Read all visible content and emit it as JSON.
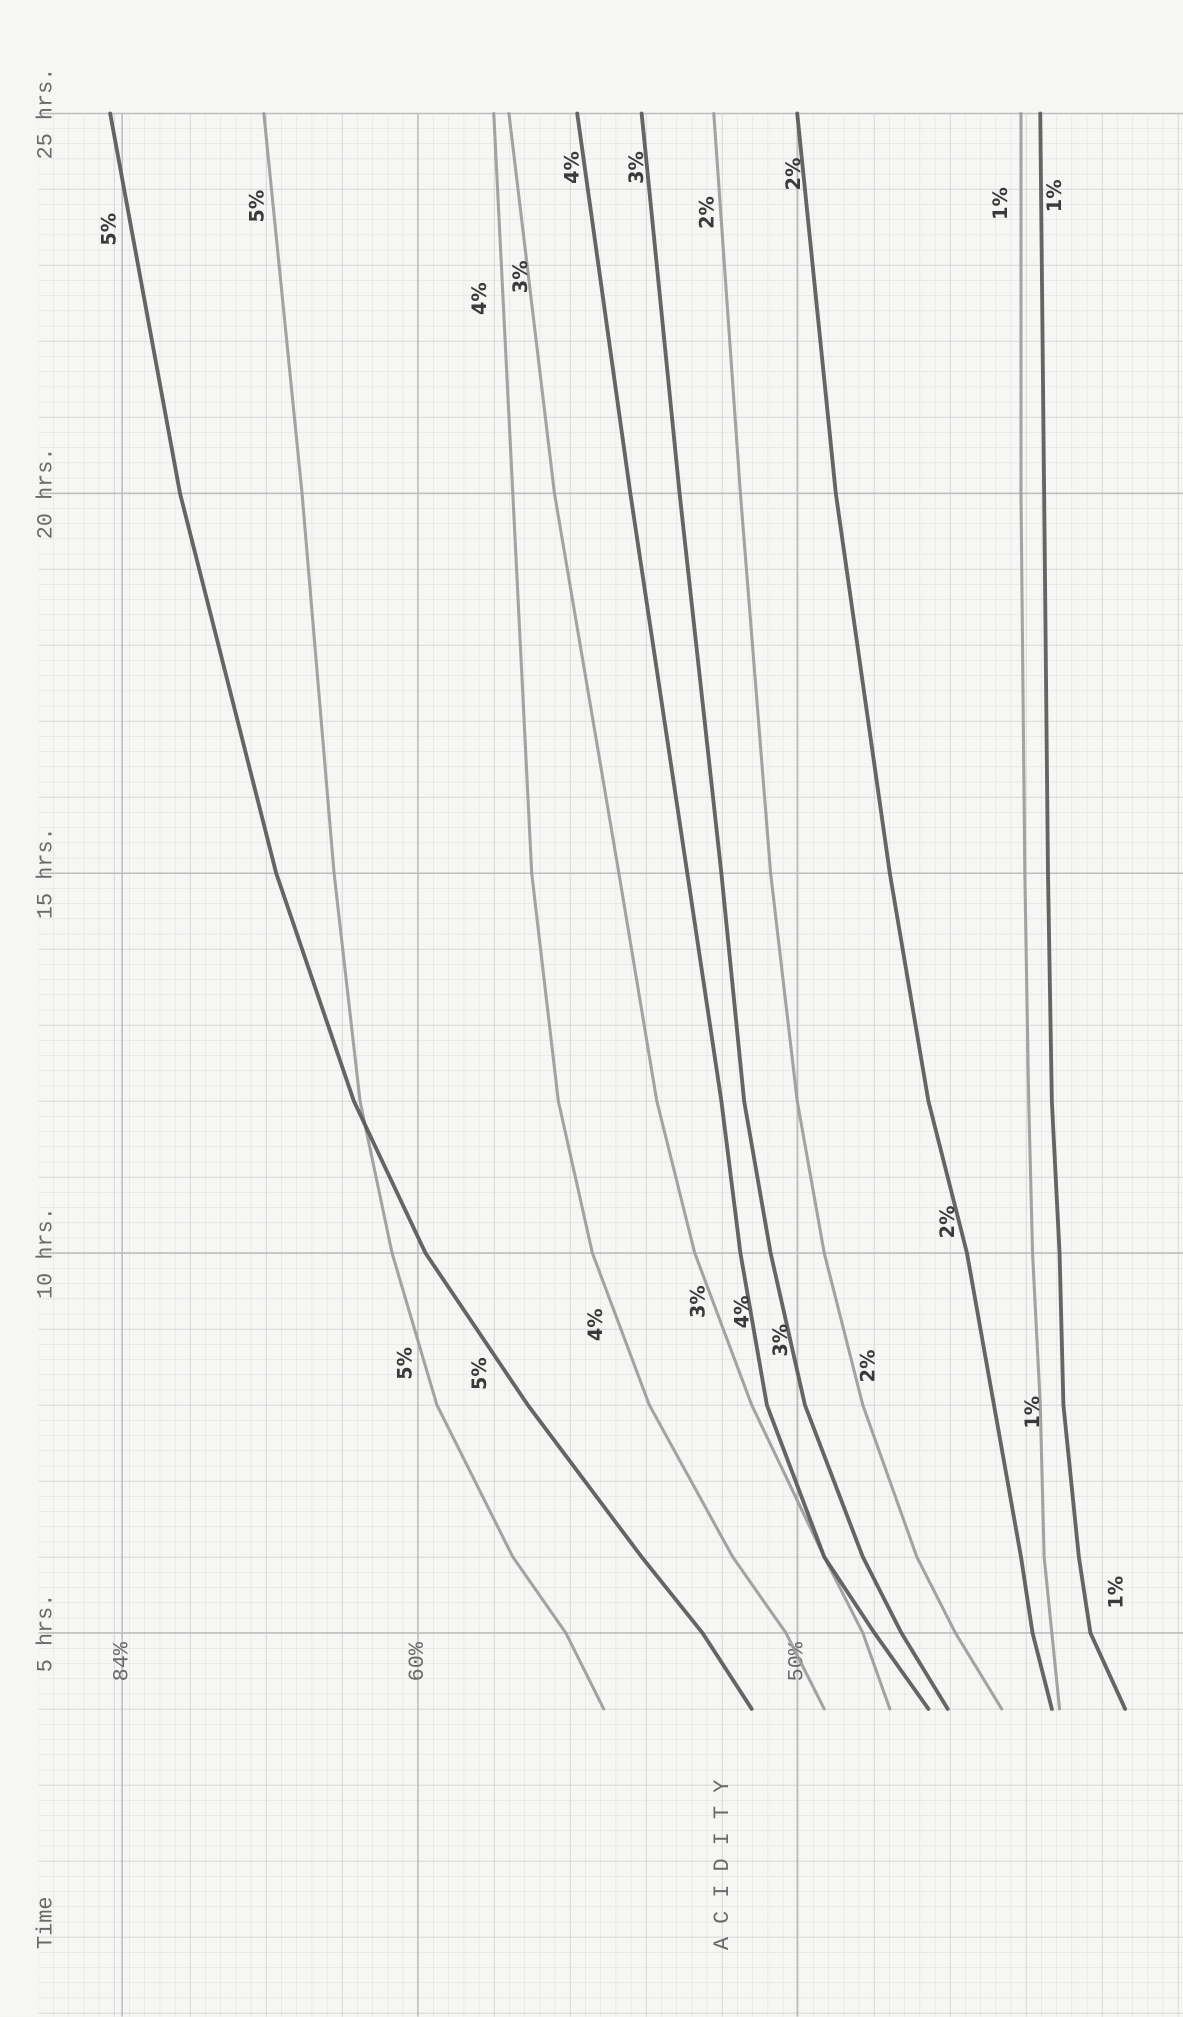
{
  "chart_data": {
    "type": "line",
    "x_label": "Time",
    "y_label": "A C I D I T Y",
    "x": [
      4,
      5,
      6,
      8,
      10,
      12,
      15,
      20,
      25
    ],
    "xlim": [
      0,
      25
    ],
    "xticks": [
      {
        "value": 5,
        "label": "5 hrs."
      },
      {
        "value": 10,
        "label": "10 hrs."
      },
      {
        "value": 15,
        "label": "15 hrs."
      },
      {
        "value": 20,
        "label": "20 hrs."
      },
      {
        "value": 25,
        "label": "25 hrs."
      }
    ],
    "ylim": [
      91,
      40
    ],
    "yticks": [
      {
        "value": 84,
        "label": "84%"
      },
      {
        "value": 60,
        "label": "60%"
      },
      {
        "value": 50,
        "label": "50%"
      }
    ],
    "grid": true,
    "series": [
      {
        "name": "5%",
        "color": "#9a9a9a",
        "values": [
          55.1,
          56.1,
          57.5,
          59.5,
          62.1,
          64.7,
          66.8,
          69.4,
          72.5
        ]
      },
      {
        "name": "5%",
        "color": "#555555",
        "values": [
          51.2,
          52.5,
          54.1,
          57.1,
          59.8,
          65.2,
          71.5,
          79.3,
          85.0
        ]
      },
      {
        "name": "4%",
        "color": "#9a9a9a",
        "values": [
          49.3,
          50.3,
          51.7,
          53.9,
          55.4,
          56.3,
          57.0,
          57.5,
          58.0
        ]
      },
      {
        "name": "3%",
        "color": "#9a9a9a",
        "values": [
          47.6,
          48.3,
          49.3,
          51.2,
          52.7,
          53.7,
          54.7,
          56.4,
          57.6
        ]
      },
      {
        "name": "4%",
        "color": "#555555",
        "values": [
          46.6,
          48.0,
          49.3,
          50.8,
          51.5,
          52.0,
          52.9,
          54.4,
          55.8
        ]
      },
      {
        "name": "3%",
        "color": "#555555",
        "values": [
          46.1,
          47.3,
          48.3,
          49.8,
          50.7,
          51.4,
          52.0,
          53.1,
          54.1
        ]
      },
      {
        "name": "2%",
        "color": "#9a9a9a",
        "values": [
          44.7,
          45.9,
          46.9,
          48.3,
          49.3,
          50.0,
          50.7,
          51.5,
          52.2
        ]
      },
      {
        "name": "2%",
        "color": "#555555",
        "values": [
          43.4,
          43.9,
          44.2,
          44.9,
          45.6,
          46.6,
          47.6,
          49.0,
          50.0
        ]
      },
      {
        "name": "1%",
        "color": "#9a9a9a",
        "values": [
          43.2,
          43.4,
          43.6,
          43.7,
          43.9,
          44.0,
          44.1,
          44.2,
          44.2
        ]
      },
      {
        "name": "1%",
        "color": "#555555",
        "values": [
          41.5,
          42.4,
          42.7,
          43.1,
          43.2,
          43.4,
          43.5,
          43.6,
          43.7
        ]
      }
    ]
  }
}
